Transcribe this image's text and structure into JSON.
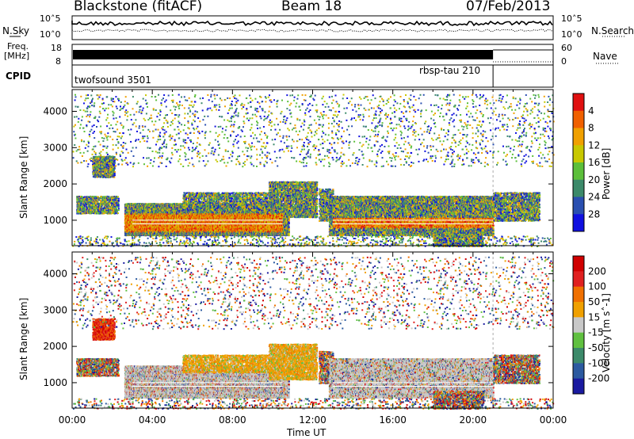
{
  "header": {
    "station": "Blackstone (fitACF)",
    "beam": "Beam 18",
    "date": "07/Feb/2013"
  },
  "top_panels": {
    "nsky": {
      "label": "N.Sky",
      "tick_hi": "10^5",
      "tick_lo": "10^0"
    },
    "nsearch": {
      "label": "N.Search",
      "tick_hi": "10^5",
      "tick_lo": "10^0"
    },
    "freq": {
      "label_line1": "Freq.",
      "label_line2": "[MHz]",
      "tick_hi": "18",
      "tick_lo": "8"
    },
    "nave": {
      "label": "Nave",
      "tick_hi": "60",
      "tick_lo": "0"
    },
    "cpid": {
      "label": "CPID",
      "mode1": "twofsound 3501",
      "mode2": "rbsp-tau 210"
    }
  },
  "chart_data": [
    {
      "type": "heatmap",
      "name": "power",
      "ylabel": "Slant Range [km]",
      "yticks": [
        "1000",
        "2000",
        "3000",
        "4000"
      ],
      "ylim": [
        300,
        4600
      ],
      "colorbar": {
        "label": "Power [dB]",
        "ticks": [
          "4",
          "8",
          "12",
          "16",
          "20",
          "24",
          "28"
        ],
        "colors": [
          "#1010e0",
          "#2a4fb0",
          "#3c8a6a",
          "#5cbf3a",
          "#c8c800",
          "#f0a000",
          "#f06000",
          "#e01010"
        ]
      },
      "grid": false
    },
    {
      "type": "heatmap",
      "name": "velocity",
      "ylabel": "Slant Range [km]",
      "yticks": [
        "1000",
        "2000",
        "3000",
        "4000"
      ],
      "ylim": [
        300,
        4600
      ],
      "colorbar": {
        "label": "Velocity [m s^-1]",
        "ticks": [
          "200",
          "100",
          "50",
          "15",
          "-15",
          "-50",
          "-100",
          "-200"
        ],
        "colors": [
          "#1a1aa0",
          "#2c5aa0",
          "#3c8a6a",
          "#60c040",
          "#c8c8c8",
          "#f0a000",
          "#f07000",
          "#e02020",
          "#d00000"
        ]
      },
      "grid": false
    }
  ],
  "xaxis": {
    "ticks": [
      "00:00",
      "04:00",
      "08:00",
      "12:00",
      "16:00",
      "20:00",
      "00:00"
    ],
    "label": "Time UT"
  }
}
